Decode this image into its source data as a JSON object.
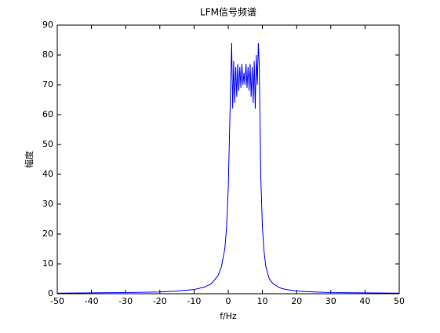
{
  "chart_data": {
    "type": "line",
    "title": "LFM信号频谱",
    "x_label": "f/Hz",
    "y_label": "幅度",
    "x": [
      -50,
      -40,
      -30,
      -20,
      -15,
      -10,
      -7,
      -5,
      -3,
      -2,
      -1,
      -0.5,
      0,
      0.5,
      1,
      1.3,
      1.6,
      1.9,
      2.2,
      2.5,
      2.8,
      3.1,
      3.4,
      3.7,
      4,
      4.3,
      4.6,
      4.9,
      5.2,
      5.5,
      5.8,
      6.1,
      6.4,
      6.7,
      7,
      7.3,
      7.6,
      7.9,
      8.2,
      8.5,
      8.8,
      9.1,
      9.5,
      10,
      10.5,
      11,
      12,
      13,
      15,
      17,
      20,
      25,
      30,
      40,
      50
    ],
    "series": [
      {
        "color": "#0000ff",
        "values": [
          0.2,
          0.3,
          0.4,
          0.6,
          0.9,
          1.4,
          2.2,
          3.3,
          6,
          9,
          15,
          22,
          35,
          60,
          84,
          62,
          78,
          64,
          76,
          66,
          77,
          68,
          76,
          69,
          77,
          70,
          74,
          70,
          77,
          69,
          76,
          68,
          77,
          66,
          76,
          64,
          78,
          62,
          80,
          70,
          84,
          76,
          40,
          22,
          14,
          9,
          5,
          3.5,
          2,
          1.4,
          0.9,
          0.6,
          0.4,
          0.3,
          0.2
        ]
      }
    ],
    "xlim": [
      -50,
      50
    ],
    "xticks": [
      -50,
      -40,
      -30,
      -20,
      -10,
      0,
      10,
      20,
      30,
      40,
      50
    ],
    "ylim": [
      0,
      90
    ],
    "yticks": [
      0,
      10,
      20,
      30,
      40,
      50,
      60,
      70,
      80,
      90
    ]
  }
}
